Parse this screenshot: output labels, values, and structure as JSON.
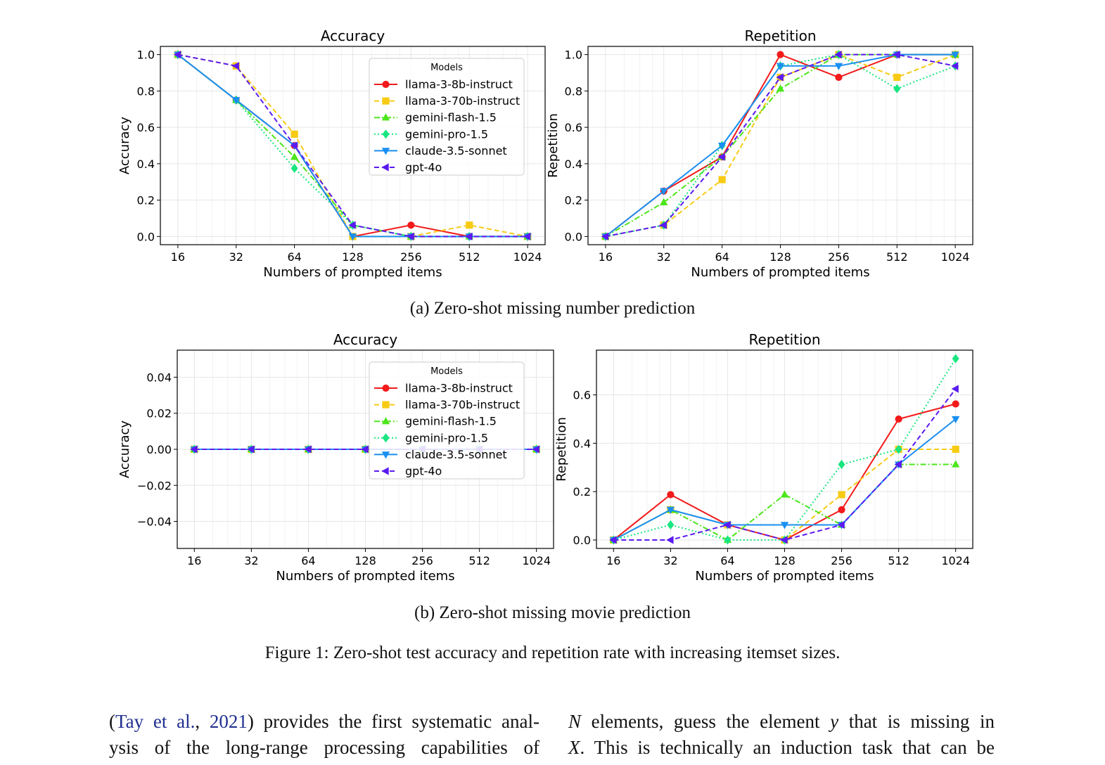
{
  "legend_title": "Models",
  "x_categories": [
    "16",
    "32",
    "64",
    "128",
    "256",
    "512",
    "1024"
  ],
  "models": [
    {
      "name": "llama-3-8b-instruct",
      "color": "#f21a1a",
      "marker": "circle",
      "dash": "solid"
    },
    {
      "name": "llama-3-70b-instruct",
      "color": "#f7cb14",
      "marker": "square",
      "dash": "dashed"
    },
    {
      "name": "gemini-flash-1.5",
      "color": "#4ce61a",
      "marker": "triangle-up",
      "dash": "dashdot"
    },
    {
      "name": "gemini-pro-1.5",
      "color": "#1ae680",
      "marker": "diamond",
      "dash": "dotted"
    },
    {
      "name": "claude-3.5-sonnet",
      "color": "#1a8ff2",
      "marker": "triangle-down",
      "dash": "solid"
    },
    {
      "name": "gpt-4o",
      "color": "#5b1af2",
      "marker": "triangle-left",
      "dash": "dashed"
    }
  ],
  "chart_data": [
    {
      "type": "line",
      "title": "Accuracy",
      "xlabel": "Numbers of prompted items",
      "ylabel": "Accuracy",
      "x": [
        16,
        32,
        64,
        128,
        256,
        512,
        1024
      ],
      "xscale": "log2",
      "ylim": [
        -0.045,
        1.045
      ],
      "yticks": [
        0.0,
        0.2,
        0.4,
        0.6,
        0.8,
        1.0
      ],
      "ytick_labels": [
        "0.0",
        "0.2",
        "0.4",
        "0.6",
        "0.8",
        "1.0"
      ],
      "grid": true,
      "legend": "upper-right",
      "series": [
        {
          "name": "llama-3-8b-instruct",
          "values": [
            1.0,
            0.75,
            0.5,
            0.0,
            0.0625,
            0.0,
            0.0
          ]
        },
        {
          "name": "llama-3-70b-instruct",
          "values": [
            1.0,
            0.9375,
            0.5625,
            0.0,
            0.0,
            0.0625,
            0.0
          ]
        },
        {
          "name": "gemini-flash-1.5",
          "values": [
            1.0,
            0.75,
            0.4375,
            0.0625,
            0.0,
            0.0,
            0.0
          ]
        },
        {
          "name": "gemini-pro-1.5",
          "values": [
            1.0,
            0.75,
            0.375,
            0.0625,
            0.0,
            0.0,
            0.0
          ]
        },
        {
          "name": "claude-3.5-sonnet",
          "values": [
            1.0,
            0.75,
            0.5,
            0.0,
            0.0,
            0.0,
            0.0
          ]
        },
        {
          "name": "gpt-4o",
          "values": [
            1.0,
            0.9375,
            0.5,
            0.0625,
            0.0,
            0.0,
            0.0
          ]
        }
      ]
    },
    {
      "type": "line",
      "title": "Repetition",
      "xlabel": "Numbers of prompted items",
      "ylabel": "Repetition",
      "x": [
        16,
        32,
        64,
        128,
        256,
        512,
        1024
      ],
      "xscale": "log2",
      "ylim": [
        -0.045,
        1.045
      ],
      "yticks": [
        0.0,
        0.2,
        0.4,
        0.6,
        0.8,
        1.0
      ],
      "ytick_labels": [
        "0.0",
        "0.2",
        "0.4",
        "0.6",
        "0.8",
        "1.0"
      ],
      "grid": true,
      "legend": "none",
      "series": [
        {
          "name": "llama-3-8b-instruct",
          "values": [
            0.0,
            0.25,
            0.4375,
            1.0,
            0.875,
            1.0,
            1.0
          ]
        },
        {
          "name": "llama-3-70b-instruct",
          "values": [
            0.0,
            0.0625,
            0.3125,
            0.875,
            1.0,
            0.875,
            1.0
          ]
        },
        {
          "name": "gemini-flash-1.5",
          "values": [
            0.0,
            0.1875,
            0.4375,
            0.8125,
            1.0,
            1.0,
            1.0
          ]
        },
        {
          "name": "gemini-pro-1.5",
          "values": [
            0.0,
            0.0625,
            0.5,
            0.9375,
            1.0,
            0.8125,
            0.9375
          ]
        },
        {
          "name": "claude-3.5-sonnet",
          "values": [
            0.0,
            0.25,
            0.5,
            0.9375,
            0.9375,
            1.0,
            1.0
          ]
        },
        {
          "name": "gpt-4o",
          "values": [
            0.0,
            0.0625,
            0.4375,
            0.875,
            1.0,
            1.0,
            0.9375
          ]
        }
      ]
    },
    {
      "type": "line",
      "title": "Accuracy",
      "xlabel": "Numbers of prompted items",
      "ylabel": "Accuracy",
      "x": [
        16,
        32,
        64,
        128,
        256,
        512,
        1024
      ],
      "xscale": "log2",
      "ylim": [
        -0.055,
        0.055
      ],
      "yticks": [
        -0.04,
        -0.02,
        0.0,
        0.02,
        0.04
      ],
      "ytick_labels": [
        "−0.04",
        "−0.02",
        "0.00",
        "0.02",
        "0.04"
      ],
      "grid": true,
      "legend": "upper-right",
      "series": [
        {
          "name": "llama-3-8b-instruct",
          "values": [
            0,
            0,
            0,
            0,
            0,
            0,
            0
          ]
        },
        {
          "name": "llama-3-70b-instruct",
          "values": [
            0,
            0,
            0,
            0,
            0,
            0,
            0
          ]
        },
        {
          "name": "gemini-flash-1.5",
          "values": [
            0,
            0,
            0,
            0,
            0,
            0,
            0
          ]
        },
        {
          "name": "gemini-pro-1.5",
          "values": [
            0,
            0,
            0,
            0,
            0,
            0,
            0
          ]
        },
        {
          "name": "claude-3.5-sonnet",
          "values": [
            0,
            0,
            0,
            0,
            0,
            0,
            0
          ]
        },
        {
          "name": "gpt-4o",
          "values": [
            0,
            0,
            0,
            0,
            0,
            0,
            0
          ]
        }
      ]
    },
    {
      "type": "line",
      "title": "Repetition",
      "xlabel": "Numbers of prompted items",
      "ylabel": "Repetition",
      "x": [
        16,
        32,
        64,
        128,
        256,
        512,
        1024
      ],
      "xscale": "log2",
      "ylim": [
        -0.035,
        0.785
      ],
      "yticks": [
        0.0,
        0.2,
        0.4,
        0.6
      ],
      "ytick_labels": [
        "0.0",
        "0.2",
        "0.4",
        "0.6"
      ],
      "grid": true,
      "legend": "none",
      "series": [
        {
          "name": "llama-3-8b-instruct",
          "values": [
            0.0,
            0.1875,
            0.0625,
            0.0,
            0.125,
            0.5,
            0.5625
          ]
        },
        {
          "name": "llama-3-70b-instruct",
          "values": [
            0.0,
            0.125,
            0.0625,
            0.0,
            0.1875,
            0.375,
            0.375
          ]
        },
        {
          "name": "gemini-flash-1.5",
          "values": [
            0.0,
            0.125,
            0.0,
            0.1875,
            0.0625,
            0.3125,
            0.3125
          ]
        },
        {
          "name": "gemini-pro-1.5",
          "values": [
            0.0,
            0.0625,
            0.0,
            0.0,
            0.3125,
            0.375,
            0.75
          ]
        },
        {
          "name": "claude-3.5-sonnet",
          "values": [
            0.0,
            0.125,
            0.0625,
            0.0625,
            0.0625,
            0.3125,
            0.5
          ]
        },
        {
          "name": "gpt-4o",
          "values": [
            0.0,
            0.0,
            0.0625,
            0.0,
            0.0625,
            0.3125,
            0.625
          ]
        }
      ]
    }
  ],
  "captions": {
    "sub_a": "(a) Zero-shot missing number prediction",
    "sub_b": "(b) Zero-shot missing movie prediction",
    "figure": "Figure 1: Zero-shot test accuracy and repetition rate with increasing itemset sizes."
  },
  "body": {
    "left_line1_open": "(",
    "left_line1_cite": "Tay et al.",
    "left_line1_comma": ", ",
    "left_line1_year": "2021",
    "left_line1_rest": ") provides the first systematic anal-",
    "left_line2": "ysis of the long-range processing capabilities of",
    "right_line1_var1": "N",
    "right_line1_mid": " elements, guess the element ",
    "right_line1_var2": "y",
    "right_line1_end": " that is missing in",
    "right_line2_var": "X",
    "right_line2_rest": ". This is technically an induction task that can be"
  }
}
